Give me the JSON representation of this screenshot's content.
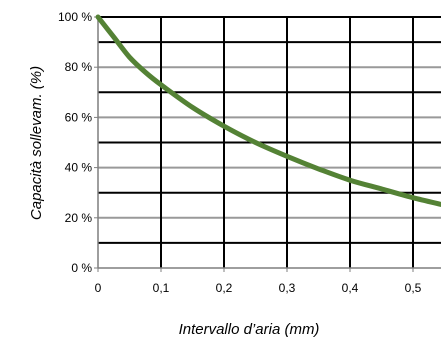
{
  "chart_data": {
    "type": "line",
    "title": "",
    "xlabel": "Intervallo d’aria (mm)",
    "ylabel": "Capacità sollevam. (%)",
    "xlim": [
      0,
      0.55
    ],
    "ylim": [
      0,
      100
    ],
    "x_ticks": [
      0,
      0.1,
      0.2,
      0.3,
      0.4,
      0.5
    ],
    "x_tick_labels": [
      "0",
      "0,1",
      "0,2",
      "0,3",
      "0,4",
      "0,5"
    ],
    "y_ticks": [
      0,
      20,
      40,
      60,
      80,
      100
    ],
    "y_tick_labels": [
      "0 %",
      "20 %",
      "40 %",
      "60 %",
      "80 %",
      "100 %"
    ],
    "grid": true,
    "legend": "none",
    "line_color": "#548235",
    "series": [
      {
        "x": [
          0,
          0.025,
          0.05,
          0.075,
          0.1,
          0.15,
          0.2,
          0.25,
          0.3,
          0.35,
          0.4,
          0.45,
          0.5,
          0.55
        ],
        "values": [
          100,
          92,
          84,
          78,
          73,
          64,
          56.5,
          50,
          44.5,
          39.5,
          35,
          31.5,
          28,
          25
        ]
      }
    ]
  }
}
